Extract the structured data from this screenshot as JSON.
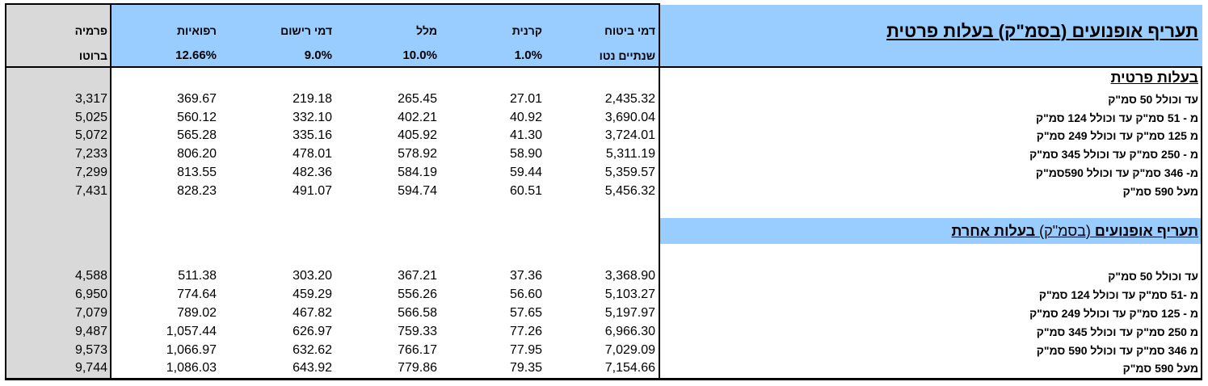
{
  "title_private": "תעריף אופנועים (בסמ\"ק) בעלות פרטית",
  "title_other": {
    "part1": "תעריף אופנועים",
    "part2": "(בסמ\"ק)",
    "part3": "בעלות אחרת"
  },
  "section_private": "בעלות פרטית",
  "headers": {
    "premia": {
      "line1": "פרמיה",
      "line2": "ברוטו"
    },
    "refuot": {
      "line1": "רפואיות",
      "line2": "12.66%"
    },
    "dmei_rishum": {
      "line1": "דמי רישום",
      "line2": "9.0%"
    },
    "malal": {
      "line1": "מלל",
      "line2": "10.0%"
    },
    "keren": {
      "line1": "קרנית",
      "line2": "1.0%"
    },
    "dmei_bituach": {
      "line1": "דמי ביטוח",
      "line2": "שנתיים נטו"
    }
  },
  "private_rows": [
    {
      "label": "עד וכולל 50 סמ\"ק",
      "bituach": "2,435.32",
      "keren": "27.01",
      "malal": "265.45",
      "rishum": "219.18",
      "refuot": "369.67",
      "premia": "3,317"
    },
    {
      "label": "מ - 51 סמ\"ק עד וכולל 124 סמ\"ק",
      "bituach": "3,690.04",
      "keren": "40.92",
      "malal": "402.21",
      "rishum": "332.10",
      "refuot": "560.12",
      "premia": "5,025"
    },
    {
      "label": "מ 125 סמ\"ק עד וכולל 249 סמ\"ק",
      "bituach": "3,724.01",
      "keren": "41.30",
      "malal": "405.92",
      "rishum": "335.16",
      "refuot": "565.28",
      "premia": "5,072"
    },
    {
      "label": "מ - 250 סמ\"ק עד וכולל 345 סמ\"ק",
      "bituach": "5,311.19",
      "keren": "58.90",
      "malal": "578.92",
      "rishum": "478.01",
      "refuot": "806.20",
      "premia": "7,233"
    },
    {
      "label": "מ- 346 סמ\"ק עד וכולל 590סמ\"ק",
      "bituach": "5,359.57",
      "keren": "59.44",
      "malal": "584.19",
      "rishum": "482.36",
      "refuot": "813.55",
      "premia": "7,299"
    },
    {
      "label": "מעל 590 סמ\"ק",
      "bituach": "5,456.32",
      "keren": "60.51",
      "malal": "594.74",
      "rishum": "491.07",
      "refuot": "828.23",
      "premia": "7,431"
    }
  ],
  "other_rows": [
    {
      "label": "עד וכולל 50 סמ\"ק",
      "bituach": "3,368.90",
      "keren": "37.36",
      "malal": "367.21",
      "rishum": "303.20",
      "refuot": "511.38",
      "premia": "4,588"
    },
    {
      "label": "מ -51 סמ\"ק עד וכולל 124 סמ\"ק",
      "bituach": "5,103.27",
      "keren": "56.60",
      "malal": "556.26",
      "rishum": "459.29",
      "refuot": "774.64",
      "premia": "6,950"
    },
    {
      "label": "מ - 125 סמ\"ק עד וכולל 249 סמ\"ק",
      "bituach": "5,197.97",
      "keren": "57.65",
      "malal": "566.58",
      "rishum": "467.82",
      "refuot": "789.02",
      "premia": "7,079"
    },
    {
      "label": "מ 250 סמ\"ק עד וכולל 345 סמ\"ק",
      "bituach": "6,966.30",
      "keren": "77.26",
      "malal": "759.33",
      "rishum": "626.97",
      "refuot": "1,057.44",
      "premia": "9,487"
    },
    {
      "label": "מ 346 סמ\"ק עד וכולל 590 סמ\"ק",
      "bituach": "7,029.09",
      "keren": "77.95",
      "malal": "766.17",
      "rishum": "632.62",
      "refuot": "1,066.97",
      "premia": "9,573"
    },
    {
      "label": "מעל 590 סמ\"ק",
      "bituach": "7,154.66",
      "keren": "79.35",
      "malal": "779.86",
      "rishum": "643.92",
      "refuot": "1,086.03",
      "premia": "9,744"
    }
  ],
  "colors": {
    "header_blue": "#99ccff",
    "premia_gray": "#d9d9d9"
  }
}
